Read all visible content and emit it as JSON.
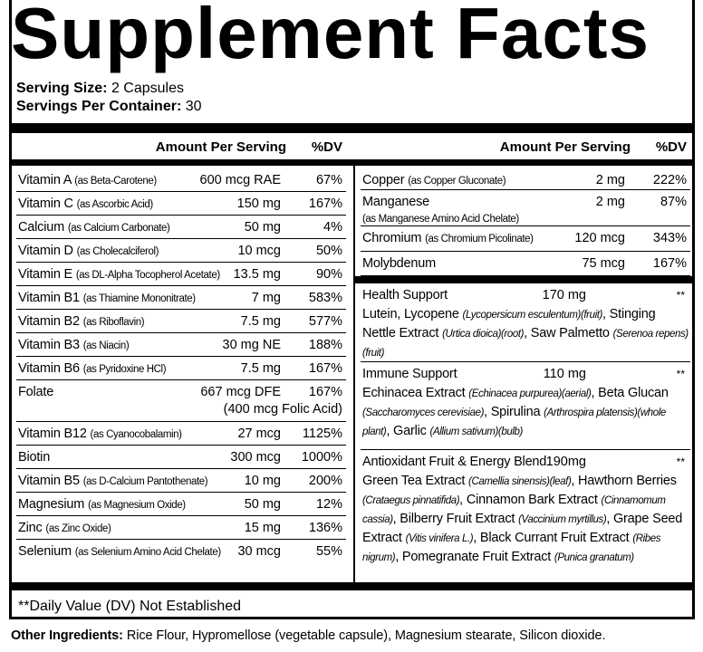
{
  "title": "Supplement Facts",
  "serving_size": {
    "label": "Serving Size:",
    "value": "2 Capsules"
  },
  "servings_per_container": {
    "label": "Servings Per Container:",
    "value": "30"
  },
  "headers": {
    "amount": "Amount Per Serving",
    "dv": "%DV"
  },
  "left_rows": [
    {
      "name": "Vitamin A",
      "source": "(as Beta-Carotene)",
      "amount": "600 mcg RAE",
      "dv": "67%"
    },
    {
      "name": "Vitamin C",
      "source": "(as Ascorbic Acid)",
      "amount": "150 mg",
      "dv": "167%"
    },
    {
      "name": "Calcium",
      "source": "(as Calcium Carbonate)",
      "amount": "50 mg",
      "dv": "4%"
    },
    {
      "name": "Vitamin D",
      "source": "(as Cholecalciferol)",
      "amount": "10 mcg",
      "dv": "50%"
    },
    {
      "name": "Vitamin E",
      "source": "(as DL-Alpha Tocopherol Acetate)",
      "amount": "13.5 mg",
      "dv": "90%"
    },
    {
      "name": "Vitamin B1",
      "source": "(as Thiamine Mononitrate)",
      "amount": "7 mg",
      "dv": "583%"
    },
    {
      "name": "Vitamin B2",
      "source": "(as Riboflavin)",
      "amount": "7.5 mg",
      "dv": "577%"
    },
    {
      "name": "Vitamin B3",
      "source": "(as Niacin)",
      "amount": "30 mg NE",
      "dv": "188%"
    },
    {
      "name": "Vitamin B6",
      "source": "(as Pyridoxine HCl)",
      "amount": "7.5 mg",
      "dv": "167%"
    },
    {
      "name": "Folate",
      "source": "",
      "amount": "667 mcg DFE",
      "dv": "167%",
      "extra": "(400 mcg Folic Acid)"
    },
    {
      "name": "Vitamin B12",
      "source": "(as Cyanocobalamin)",
      "amount": "27 mcg",
      "dv": "1125%"
    },
    {
      "name": "Biotin",
      "source": "",
      "amount": "300 mcg",
      "dv": "1000%"
    },
    {
      "name": "Vitamin B5",
      "source": "(as D-Calcium Pantothenate)",
      "amount": "10 mg",
      "dv": "200%"
    },
    {
      "name": "Magnesium",
      "source": "(as Magnesium Oxide)",
      "amount": "50 mg",
      "dv": "12%"
    },
    {
      "name": "Zinc",
      "source": "(as Zinc Oxide)",
      "amount": "15 mg",
      "dv": "136%"
    },
    {
      "name": "Selenium",
      "source": "(as Selenium Amino Acid Chelate)",
      "amount": "30 mcg",
      "dv": "55%"
    }
  ],
  "right_rows": [
    {
      "name": "Copper",
      "source": "(as Copper Gluconate)",
      "amount": "2 mg",
      "dv": "222%"
    },
    {
      "name": "Manganese",
      "source_line2": "(as Manganese Amino Acid Chelate)",
      "amount": "2 mg",
      "dv": "87%"
    },
    {
      "name": "Chromium",
      "source": "(as Chromium Picolinate)",
      "amount": "120 mcg",
      "dv": "343%"
    },
    {
      "name": "Molybdenum",
      "source": "",
      "amount": "75 mcg",
      "dv": "167%"
    }
  ],
  "blends": [
    {
      "name": "Health Support",
      "amount": "170 mg",
      "dv": "**",
      "desc": [
        {
          "t": "Lutein, Lycopene "
        },
        {
          "t": "(Lycopersicum esculentum)(fruit)",
          "i": true
        },
        {
          "t": ", Stinging Nettle Extract "
        },
        {
          "t": "(Urtica dioica)(root)",
          "i": true
        },
        {
          "t": ", Saw Palmetto "
        },
        {
          "t": "(Serenoa repens)(fruit)",
          "i": true
        }
      ]
    },
    {
      "name": "Immune Support",
      "amount": "110 mg",
      "dv": "**",
      "desc": [
        {
          "t": "Echinacea Extract "
        },
        {
          "t": "(Echinacea purpurea)(aerial)",
          "i": true
        },
        {
          "t": ", Beta Glucan "
        },
        {
          "t": "(Saccharomyces cerevisiae)",
          "i": true
        },
        {
          "t": ", Spirulina "
        },
        {
          "t": "(Arthrospira platensis)(whole plant)",
          "i": true
        },
        {
          "t": ", Garlic "
        },
        {
          "t": "(Allium sativum)(bulb)",
          "i": true
        }
      ]
    },
    {
      "name": "Antioxidant Fruit & Energy Blend",
      "amount": "190mg",
      "dv": "**",
      "desc": [
        {
          "t": "Green Tea Extract "
        },
        {
          "t": "(Camellia sinensis)(leaf)",
          "i": true
        },
        {
          "t": ", Hawthorn Berries "
        },
        {
          "t": "(Crataegus pinnatifida)",
          "i": true
        },
        {
          "t": ", Cinnamon Bark Extract "
        },
        {
          "t": "(Cinnamomum cassia)",
          "i": true
        },
        {
          "t": ", Bilberry Fruit Extract "
        },
        {
          "t": "(Vaccinium myrtillus)",
          "i": true
        },
        {
          "t": ", Grape Seed Extract "
        },
        {
          "t": "(Vitis vinifera L.)",
          "i": true
        },
        {
          "t": ", Black Currant Fruit Extract "
        },
        {
          "t": "(Ribes nigrum)",
          "i": true
        },
        {
          "t": ", Pomegranate Fruit Extract "
        },
        {
          "t": "(Punica granatum)",
          "i": true
        }
      ]
    }
  ],
  "footnote": "**Daily Value (DV) Not Established",
  "other_ingredients": {
    "label": "Other Ingredients:",
    "value": "Rice Flour, Hypromellose (vegetable capsule), Magnesium stearate, Silicon dioxide."
  }
}
